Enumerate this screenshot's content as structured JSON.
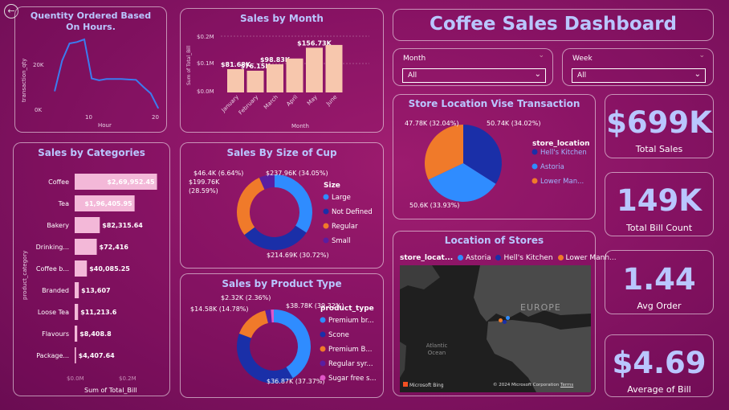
{
  "header": {
    "title": "Coffee Sales Dashboard",
    "back_icon": "back-arrow-icon"
  },
  "slicers": {
    "month": {
      "label": "Month",
      "value": "All"
    },
    "week": {
      "label": "Week",
      "value": "All"
    }
  },
  "kpis": [
    {
      "value": "$699K",
      "label": "Total Sales"
    },
    {
      "value": "149K",
      "label": "Total Bill Count"
    },
    {
      "value": "1.44",
      "label": "Avg Order"
    },
    {
      "value": "$4.69",
      "label": "Average of Bill"
    }
  ],
  "hours_chart": {
    "title": "Quentity Ordered Based On Hours.",
    "ylabel": "transaction_qty",
    "xlabel": "Hour",
    "yticks": [
      "20K",
      "0K"
    ],
    "xticks": [
      "10",
      "20"
    ],
    "color": "#3b7cf0"
  },
  "month_chart": {
    "title": "Sales by Month",
    "ylabel": "Sum of Total_Bill",
    "xlabel": "Month",
    "yticks": [
      "$0.2M",
      "$0.1M",
      "$0.0M"
    ],
    "bar_color": "#f7c7ad"
  },
  "category_chart": {
    "title": "Sales by Categories",
    "ylabel": "product_category",
    "xlabel": "Sum of Total_Bill",
    "xticks": [
      "$0.0M",
      "$0.2M"
    ],
    "bar_color": "#f3b8d8"
  },
  "size_chart": {
    "title": "Sales By Size of Cup",
    "legend_title": "Size",
    "labels": [
      "$46.4K (6.64%)",
      "$237.96K (34.05%)",
      "$199.76K (28.59%)",
      "$214.69K (30.72%)"
    ]
  },
  "product_chart": {
    "title": "Sales by Product Type",
    "legend_title": "product_type",
    "labels": [
      "$2.32K (2.36%)",
      "$14.58K (14.78%)",
      "$38.78K (39.32%)",
      "$36.87K (37.37%)"
    ]
  },
  "location_chart": {
    "title": "Store Location Vise Transaction",
    "legend_title": "store_location",
    "labels": [
      "47.78K (32.04%)",
      "50.74K (34.02%)",
      "50.6K (33.93%)"
    ]
  },
  "map": {
    "title": "Location of Stores",
    "legend_title": "store_locat...",
    "legend": [
      {
        "name": "Astoria",
        "color": "#2f8cff"
      },
      {
        "name": "Hell's Kitchen",
        "color": "#1a2fa8"
      },
      {
        "name": "Lower Manh...",
        "color": "#f07a2a"
      }
    ],
    "label_europe": "EUROPE",
    "label_ocean": "Atlantic Ocean",
    "bing": "Microsoft Bing",
    "copyright": "© 2024 Microsoft Corporation",
    "terms": "Terms"
  },
  "chart_data": [
    {
      "type": "line",
      "title": "Quentity Ordered Based On Hours.",
      "xlabel": "Hour",
      "ylabel": "transaction_qty",
      "x": [
        6,
        7,
        8,
        9,
        10,
        11,
        12,
        13,
        14,
        15,
        16,
        17,
        18,
        19,
        20
      ],
      "values": [
        7000,
        18500,
        25000,
        25500,
        26500,
        11700,
        11000,
        11500,
        11500,
        11500,
        11300,
        11200,
        8500,
        6000,
        500
      ],
      "xlim": [
        5,
        20
      ],
      "ylim": [
        0,
        32000
      ]
    },
    {
      "type": "bar",
      "title": "Sales by Month",
      "xlabel": "Month",
      "ylabel": "Sum of Total_Bill",
      "categories": [
        "January",
        "February",
        "March",
        "April",
        "May",
        "June"
      ],
      "values": [
        81.68,
        76.15,
        98.83,
        118.94,
        156.73,
        166.49
      ],
      "data_labels": [
        "$81.68K",
        "$76.15K",
        "$98.83K",
        "",
        "$156.73K",
        ""
      ],
      "ylim": [
        0,
        200
      ]
    },
    {
      "type": "bar",
      "orientation": "horizontal",
      "title": "Sales by Categories",
      "xlabel": "Sum of Total_Bill",
      "ylabel": "product_category",
      "categories": [
        "Coffee",
        "Tea",
        "Bakery",
        "Drinking...",
        "Coffee b...",
        "Branded",
        "Loose Tea",
        "Flavours",
        "Package..."
      ],
      "values": [
        269952.45,
        196405.95,
        82315.64,
        72416,
        40085.25,
        13607,
        11213.6,
        8408.8,
        4407.64
      ],
      "data_labels": [
        "$2,69,952.45",
        "$1,96,405.95",
        "$82,315.64",
        "$72,416",
        "$40,085.25",
        "$13,607",
        "$11,213.6",
        "$8,408.8",
        "$4,407.64"
      ],
      "xlim": [
        0,
        300000
      ]
    },
    {
      "type": "pie",
      "subtype": "donut",
      "title": "Sales By Size of Cup",
      "categories": [
        "Large",
        "Not Defined",
        "Regular",
        "Small"
      ],
      "values": [
        237.96,
        214.69,
        199.76,
        46.4
      ],
      "colors": [
        "#2f8cff",
        "#1a2fa8",
        "#f07a2a",
        "#5a1ea0"
      ]
    },
    {
      "type": "pie",
      "subtype": "donut",
      "title": "Sales by Product Type",
      "categories": [
        "Premium br...",
        "Scone",
        "Premium B...",
        "Regular syr...",
        "Sugar free s..."
      ],
      "values": [
        38.78,
        36.87,
        14.58,
        2.32,
        1.2
      ],
      "colors": [
        "#2f8cff",
        "#1a2fa8",
        "#f07a2a",
        "#5a1ea0",
        "#e056c8"
      ]
    },
    {
      "type": "pie",
      "title": "Store Location Vise Transaction",
      "categories": [
        "Hell's Kitchen",
        "Astoria",
        "Lower Man..."
      ],
      "values": [
        50.74,
        50.6,
        47.78
      ],
      "colors": [
        "#1a2fa8",
        "#2f8cff",
        "#f07a2a"
      ]
    }
  ]
}
